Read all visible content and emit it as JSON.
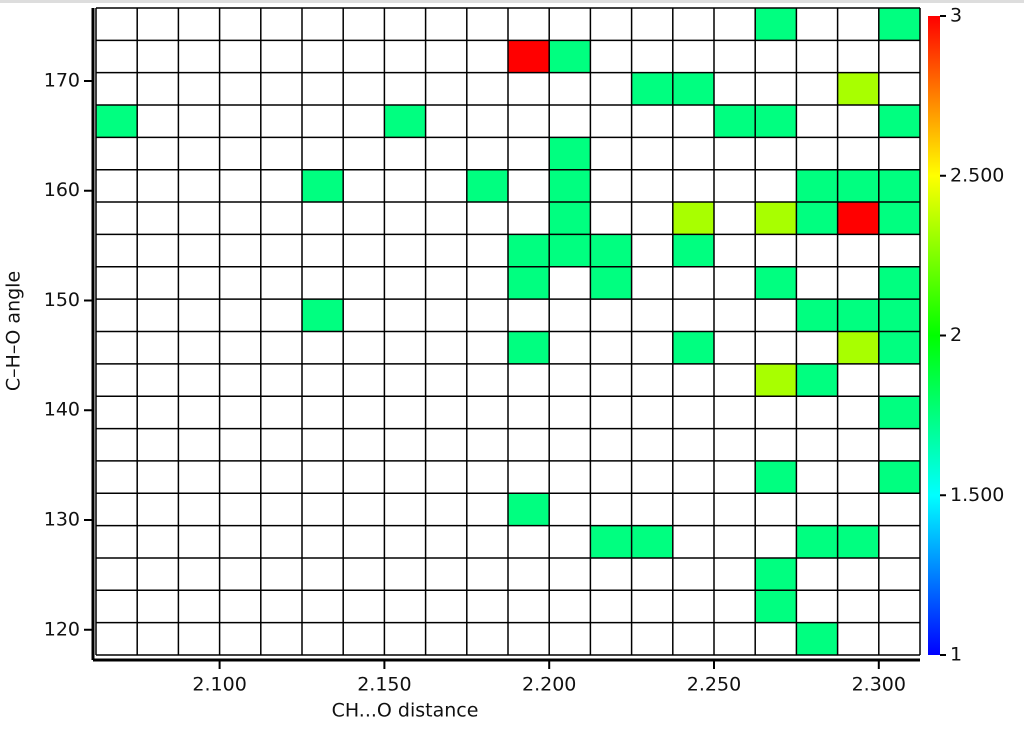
{
  "chart_data": {
    "type": "heatmap",
    "xlabel": "CH...O distance",
    "ylabel": "C–H–O angle",
    "xlim": [
      2.0625,
      2.3125
    ],
    "ylim": [
      117.7,
      176.65
    ],
    "xticks": [
      {
        "value": 2.1,
        "label": "2.100"
      },
      {
        "value": 2.15,
        "label": "2.150"
      },
      {
        "value": 2.2,
        "label": "2.200"
      },
      {
        "value": 2.25,
        "label": "2.250"
      },
      {
        "value": 2.3,
        "label": "2.300"
      }
    ],
    "yticks": [
      120,
      130,
      140,
      150,
      160,
      170
    ],
    "xbins": [
      2.0625,
      2.075,
      2.0875,
      2.1,
      2.1125,
      2.125,
      2.1375,
      2.15,
      2.1625,
      2.175,
      2.1875,
      2.2,
      2.2125,
      2.225,
      2.2375,
      2.25,
      2.2625,
      2.275,
      2.2875,
      2.3,
      2.3125
    ],
    "ybins": [
      117.7,
      120.65,
      123.6,
      126.54,
      129.49,
      132.44,
      135.39,
      138.33,
      141.28,
      144.23,
      147.18,
      150.12,
      153.07,
      156.02,
      158.97,
      161.91,
      164.86,
      167.81,
      170.76,
      173.7,
      176.65
    ],
    "x": [
      2.26875,
      2.30625,
      2.19375,
      2.20625,
      2.23125,
      2.24375,
      2.29375,
      2.06875,
      2.15625,
      2.25625,
      2.26875,
      2.30625,
      2.20625,
      2.13125,
      2.18125,
      2.20625,
      2.28125,
      2.29375,
      2.30625,
      2.20625,
      2.24375,
      2.26875,
      2.28125,
      2.29375,
      2.30625,
      2.19375,
      2.20625,
      2.21875,
      2.24375,
      2.19375,
      2.21875,
      2.26875,
      2.30625,
      2.13125,
      2.28125,
      2.29375,
      2.30625,
      2.19375,
      2.24375,
      2.29375,
      2.30625,
      2.26875,
      2.28125,
      2.30625,
      2.26875,
      2.30625,
      2.19375,
      2.21875,
      2.23125,
      2.28125,
      2.29375,
      2.26875,
      2.26875,
      2.28125
    ],
    "y": [
      175.18,
      175.18,
      172.23,
      172.23,
      169.29,
      169.29,
      169.29,
      166.34,
      166.34,
      166.34,
      166.34,
      166.34,
      163.39,
      160.44,
      160.44,
      160.44,
      160.44,
      160.44,
      160.44,
      157.5,
      157.5,
      157.5,
      157.5,
      157.5,
      157.5,
      154.55,
      154.55,
      154.55,
      154.55,
      151.6,
      151.6,
      151.6,
      151.6,
      148.65,
      148.65,
      148.65,
      148.65,
      145.71,
      145.71,
      145.71,
      145.71,
      142.76,
      142.76,
      139.81,
      133.92,
      133.92,
      130.97,
      128.02,
      128.02,
      128.02,
      128.02,
      125.07,
      122.13,
      119.18
    ],
    "values": [
      1.75,
      1.75,
      3,
      1.75,
      1.75,
      1.75,
      2.33,
      1.75,
      1.75,
      1.75,
      1.75,
      1.75,
      1.75,
      1.75,
      1.75,
      1.75,
      1.75,
      1.75,
      1.75,
      1.75,
      2.33,
      2.33,
      1.75,
      3,
      1.75,
      1.75,
      1.75,
      1.75,
      1.75,
      1.75,
      1.75,
      1.75,
      1.75,
      1.75,
      1.75,
      1.75,
      1.75,
      1.75,
      1.75,
      2.33,
      1.75,
      2.33,
      1.75,
      1.75,
      1.75,
      1.75,
      1.75,
      1.75,
      1.75,
      1.75,
      1.75,
      1.75,
      1.75,
      1.75
    ],
    "clim": [
      1,
      3
    ],
    "cticks": [
      1,
      {
        "value": 1.5,
        "label": "1.500"
      },
      2,
      {
        "value": 2.5,
        "label": "2.500"
      },
      3
    ],
    "colormap": [
      "#0000ff",
      "#00ffff",
      "#00ff00",
      "#ffff00",
      "#ff0000"
    ]
  }
}
